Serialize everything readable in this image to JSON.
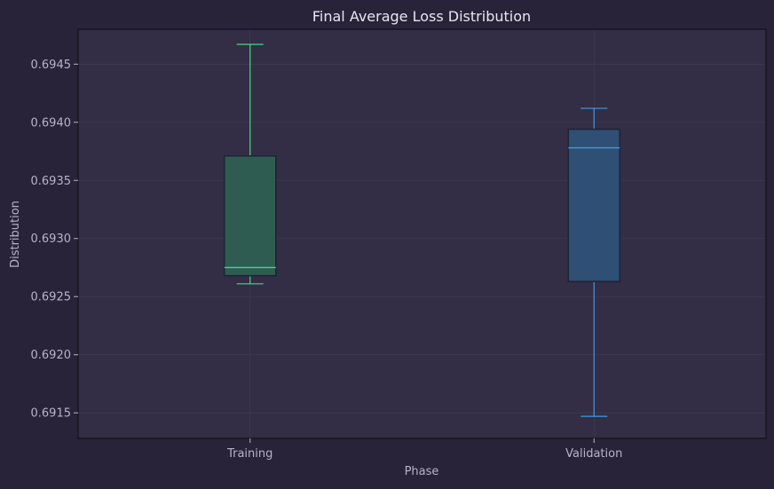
{
  "chart_data": {
    "type": "box",
    "title": "Final Average Loss Distribution",
    "xlabel": "Phase",
    "ylabel": "Distribution",
    "categories": [
      "Training",
      "Validation"
    ],
    "boxes": [
      {
        "category": "Training",
        "whisker_low": 0.69261,
        "q1": 0.69268,
        "median": 0.69275,
        "q3": 0.69371,
        "whisker_high": 0.69467
      },
      {
        "category": "Validation",
        "whisker_low": 0.69147,
        "q1": 0.69263,
        "median": 0.69378,
        "q3": 0.69394,
        "whisker_high": 0.69412
      }
    ],
    "ylim": [
      0.69128,
      0.6948
    ],
    "yticks": [
      0.6915,
      0.692,
      0.6925,
      0.693,
      0.6935,
      0.694,
      0.6945
    ],
    "ytick_labels": [
      "0.6915",
      "0.6920",
      "0.6925",
      "0.6930",
      "0.6935",
      "0.6940",
      "0.6945"
    ],
    "grid": true,
    "colors": {
      "background": "#282338",
      "plot_background": "#332d45",
      "training_fill": "#2f5c51",
      "training_line": "#3ddc84",
      "validation_fill": "#2f4f74",
      "validation_line": "#3f9be0",
      "box_edge": "#1e2236",
      "grid": "#443e58",
      "text": "#b8b3c8",
      "title": "#e8e6f0"
    }
  }
}
